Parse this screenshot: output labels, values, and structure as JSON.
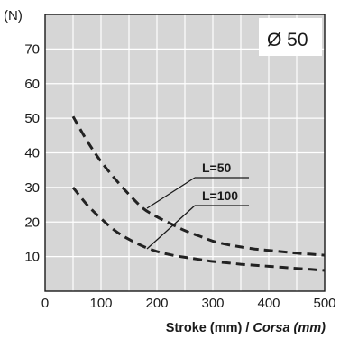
{
  "chart_data": {
    "type": "line",
    "title": "Ø 50",
    "ylabel": "(N)",
    "xlabel": "Stroke (mm) / ",
    "xlabel_italic": "Corsa (mm)",
    "xlim": [
      0,
      500
    ],
    "ylim": [
      0,
      80
    ],
    "x_ticks": [
      0,
      100,
      200,
      300,
      400,
      500
    ],
    "y_ticks": [
      10,
      20,
      30,
      40,
      50,
      60,
      70
    ],
    "grid": true,
    "background": "#d6d6d6",
    "line_color": "#222222",
    "line_style": "dashed",
    "series": [
      {
        "name": "L=50",
        "x": [
          50,
          75,
          100,
          125,
          150,
          175,
          200,
          225,
          250,
          275,
          300,
          325,
          350,
          375,
          400,
          425,
          450,
          475,
          500
        ],
        "y": [
          50.5,
          43.5,
          37.5,
          32.5,
          28,
          24,
          21.5,
          19.5,
          17.5,
          16,
          14.5,
          13.5,
          12.8,
          12.2,
          11.8,
          11.4,
          11,
          10.7,
          10.4
        ]
      },
      {
        "name": "L=100",
        "x": [
          50,
          75,
          100,
          125,
          150,
          175,
          200,
          225,
          250,
          275,
          300,
          325,
          350,
          375,
          400,
          425,
          450,
          475,
          500
        ],
        "y": [
          30,
          25,
          21,
          17.5,
          15,
          13,
          11.5,
          10.5,
          9.8,
          9.2,
          8.6,
          8.2,
          7.8,
          7.5,
          7.2,
          6.9,
          6.6,
          6.3,
          6
        ]
      }
    ]
  }
}
